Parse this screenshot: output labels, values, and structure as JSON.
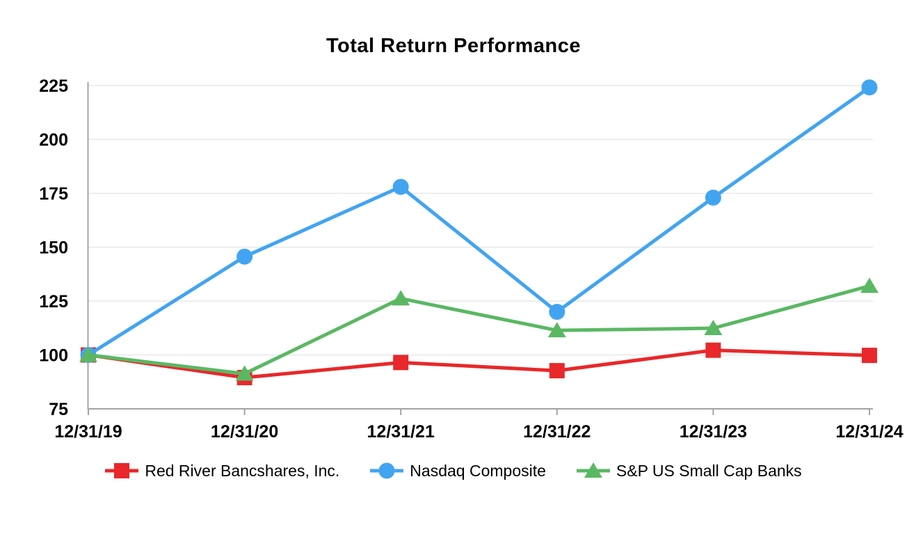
{
  "chart_data": {
    "type": "line",
    "title": "Total Return Performance",
    "categories": [
      "12/31/19",
      "12/31/20",
      "12/31/21",
      "12/31/22",
      "12/31/23",
      "12/31/24"
    ],
    "series": [
      {
        "name": "Red River Bancshares, Inc.",
        "marker": "square",
        "color": "#e8282a",
        "values": [
          100,
          89.5,
          96.5,
          92.7,
          102.2,
          99.8
        ]
      },
      {
        "name": "Nasdaq Composite",
        "marker": "circle",
        "color": "#42a4f0",
        "values": [
          100,
          145.6,
          178.0,
          120.0,
          173.0,
          224.1
        ]
      },
      {
        "name": "S&P US Small Cap Banks",
        "marker": "triangle",
        "color": "#5ab863",
        "values": [
          100,
          91.3,
          126.2,
          111.4,
          112.4,
          132.0
        ]
      }
    ],
    "ylim": [
      75,
      225
    ],
    "yticks": [
      75,
      100,
      125,
      150,
      175,
      200,
      225
    ],
    "xlabel": "",
    "ylabel": "",
    "grid": "horizontal",
    "legend_position": "bottom",
    "colors": {
      "grid_line": "#e8e8e8",
      "axis_line": "#a3a3a3",
      "tick_text": "#000000"
    }
  }
}
